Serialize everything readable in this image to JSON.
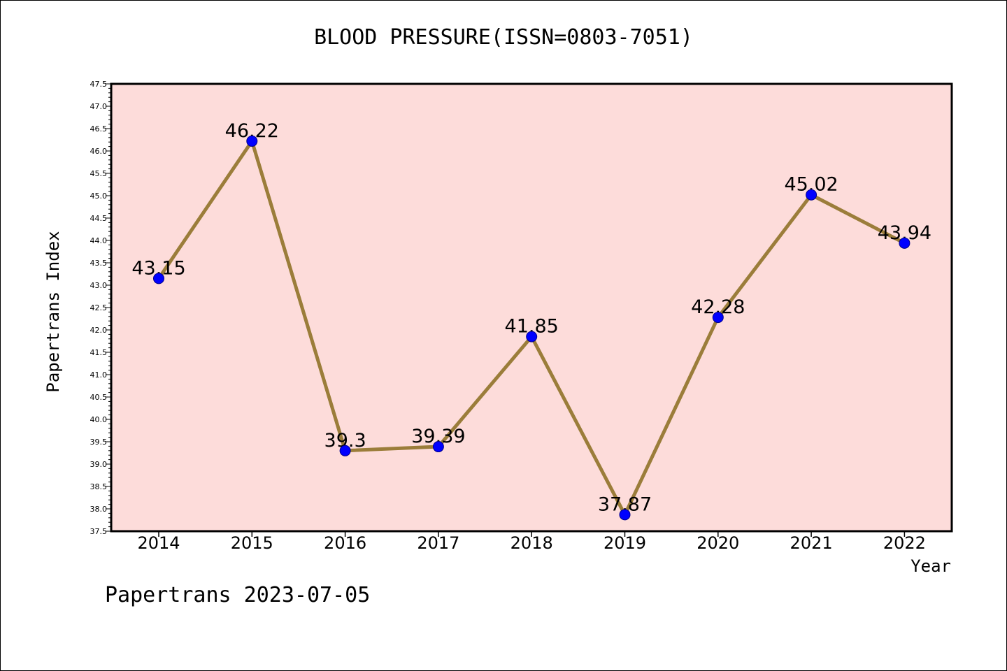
{
  "title": "BLOOD PRESSURE(ISSN=0803-7051)",
  "footer": "Papertrans 2023-07-05",
  "colors": {
    "plot_background": "#fddcda",
    "line": "#9b7d3a",
    "marker": "#0000ff",
    "axis": "#000000"
  },
  "chart_data": {
    "type": "line",
    "title": "BLOOD PRESSURE(ISSN=0803-7051)",
    "xlabel": "Year",
    "ylabel": "Papertrans Index",
    "categories": [
      "2014",
      "2015",
      "2016",
      "2017",
      "2018",
      "2019",
      "2020",
      "2021",
      "2022"
    ],
    "series": [
      {
        "values": [
          43.15,
          46.22,
          39.3,
          39.39,
          41.85,
          37.87,
          42.28,
          45.02,
          43.94
        ],
        "data_labels": [
          "43.15",
          "46.22",
          "39.3",
          "39.39",
          "41.85",
          "37.87",
          "42.28",
          "45.02",
          "43.94"
        ]
      }
    ],
    "ylim": [
      37.5,
      47.5
    ],
    "y_ticks": [
      "37.5",
      "38.0",
      "38.5",
      "39.0",
      "39.5",
      "40.0",
      "40.5",
      "41.0",
      "41.5",
      "42.0",
      "42.5",
      "43.0",
      "43.5",
      "44.0",
      "44.5",
      "45.0",
      "45.5",
      "46.0",
      "46.5",
      "47.0",
      "47.5"
    ],
    "grid": false,
    "legend": "none"
  }
}
